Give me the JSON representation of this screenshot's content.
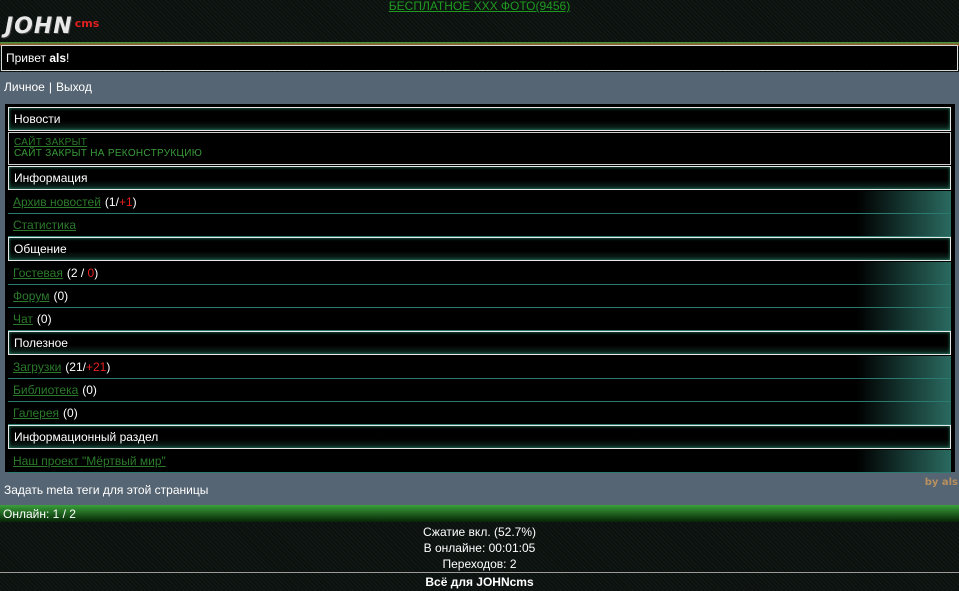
{
  "top_link": "БЕСПЛАТНОЕ ХХХ ФОТО(9456)",
  "logo": {
    "main": "JOHN",
    "sub": "cms"
  },
  "greeting": {
    "prefix": "Привет",
    "user": "als",
    "suffix": "!"
  },
  "user_menu": {
    "items": [
      "Личное",
      "Выход"
    ],
    "separator": "|"
  },
  "sections": [
    {
      "title": "Новости",
      "news": {
        "title": "САЙТ ЗАКРЫТ",
        "text": "САЙТ ЗАКРЫТ НА РЕКОНСТРУКЦИЮ"
      },
      "items": []
    },
    {
      "title": "Информация",
      "items": [
        {
          "link": "Архив новостей",
          "counter": [
            {
              "text": "(1/"
            },
            {
              "text": "+1",
              "new": true
            },
            {
              "text": ")"
            }
          ]
        },
        {
          "link": "Статистика",
          "counter": []
        }
      ]
    },
    {
      "title": "Общение",
      "items": [
        {
          "link": "Гостевая",
          "counter": [
            {
              "text": "(2 / "
            },
            {
              "text": "0",
              "new": true
            },
            {
              "text": ")"
            }
          ]
        },
        {
          "link": "Форум",
          "counter": [
            {
              "text": "(0)"
            }
          ]
        },
        {
          "link": "Чат",
          "counter": [
            {
              "text": "(0)"
            }
          ]
        }
      ]
    },
    {
      "title": "Полезное",
      "items": [
        {
          "link": "Загрузки",
          "counter": [
            {
              "text": "(21/"
            },
            {
              "text": "+21",
              "new": true
            },
            {
              "text": ")"
            }
          ]
        },
        {
          "link": "Библиотека",
          "counter": [
            {
              "text": "(0)"
            }
          ]
        },
        {
          "link": "Галерея",
          "counter": [
            {
              "text": "(0)"
            }
          ]
        }
      ]
    },
    {
      "title": "Информационный раздел",
      "items": [
        {
          "link": "Наш проект \"Мёртвый мир\"",
          "counter": []
        }
      ]
    }
  ],
  "meta_link": "Задать meta теги для этой страницы",
  "credit": "by als",
  "online": "Онлайн: 1 / 2",
  "stats": [
    "Сжатие вкл. (52.7%)",
    "В онлайне: 00:01:05",
    "Переходов: 2"
  ],
  "footer": "Всё для JOHNcms"
}
